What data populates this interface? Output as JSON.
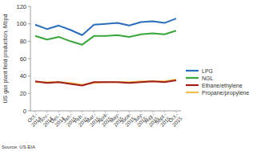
{
  "chart_data": {
    "type": "line",
    "y_label": "US gas plant field production, Mbpd",
    "source": "Source: US EIA",
    "categories": [
      "Oct.-2014",
      "Nov.-2014",
      "Dec.-2014",
      "Jan.-2015",
      "Feb.-2015",
      "Mar.-2015",
      "April-2015",
      "May-2015",
      "June-2015",
      "July-2015",
      "Aug.-2015",
      "Sept.-2015",
      "Oct.-2015"
    ],
    "series": [
      {
        "name": "LPG",
        "color": "#2a6ebb",
        "values": [
          99,
          94,
          98,
          93,
          87,
          99,
          100,
          101,
          98,
          102,
          103,
          101,
          106
        ]
      },
      {
        "name": "NGL",
        "color": "#3aa53a",
        "values": [
          86,
          82,
          85,
          80,
          76,
          86,
          86,
          87,
          85,
          88,
          89,
          88,
          92
        ]
      },
      {
        "name": "Ethane/ethylene",
        "color": "#a21f1f",
        "values": [
          34,
          32,
          33,
          31,
          29,
          33,
          33,
          33,
          32,
          33,
          34,
          33,
          35
        ]
      },
      {
        "name": "Propane/propylene",
        "color": "#f2c14e",
        "values": [
          33,
          33,
          33,
          32,
          30,
          32,
          33,
          33,
          33,
          34,
          34,
          34,
          36
        ]
      }
    ],
    "ylim": [
      0,
      120
    ],
    "yticks": [
      0,
      20,
      40,
      60,
      80,
      100,
      120
    ],
    "grid": false,
    "legend": "right"
  }
}
